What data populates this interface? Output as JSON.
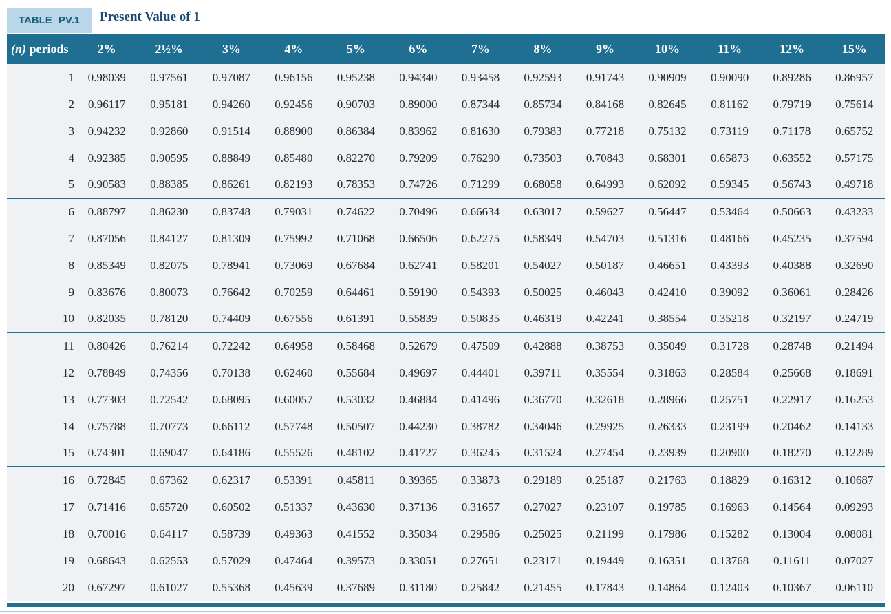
{
  "header": {
    "tag": "TABLE PV.1",
    "title": "Present Value of 1"
  },
  "colors": {
    "band": "#1F6F92",
    "tag_bg": "#B9D7E8",
    "tag_text": "#1A5E80",
    "title_text": "#1B4A73",
    "body_bg": "#EFF1F3",
    "cell_text": "#222733",
    "rule_light": "#A8CCDF",
    "rule_gray": "#CBD0D4"
  },
  "table": {
    "n_header_symbol": "(n)",
    "n_header_rest": " periods",
    "group_size": 5,
    "columns": [
      "2%",
      "2½%",
      "3%",
      "4%",
      "5%",
      "6%",
      "7%",
      "8%",
      "9%",
      "10%",
      "11%",
      "12%",
      "15%"
    ],
    "rows": [
      {
        "n": "1",
        "values": [
          "0.98039",
          "0.97561",
          "0.97087",
          "0.96156",
          "0.95238",
          "0.94340",
          "0.93458",
          "0.92593",
          "0.91743",
          "0.90909",
          "0.90090",
          "0.89286",
          "0.86957"
        ]
      },
      {
        "n": "2",
        "values": [
          "0.96117",
          "0.95181",
          "0.94260",
          "0.92456",
          "0.90703",
          "0.89000",
          "0.87344",
          "0.85734",
          "0.84168",
          "0.82645",
          "0.81162",
          "0.79719",
          "0.75614"
        ]
      },
      {
        "n": "3",
        "values": [
          "0.94232",
          "0.92860",
          "0.91514",
          "0.88900",
          "0.86384",
          "0.83962",
          "0.81630",
          "0.79383",
          "0.77218",
          "0.75132",
          "0.73119",
          "0.71178",
          "0.65752"
        ]
      },
      {
        "n": "4",
        "values": [
          "0.92385",
          "0.90595",
          "0.88849",
          "0.85480",
          "0.82270",
          "0.79209",
          "0.76290",
          "0.73503",
          "0.70843",
          "0.68301",
          "0.65873",
          "0.63552",
          "0.57175"
        ]
      },
      {
        "n": "5",
        "values": [
          "0.90583",
          "0.88385",
          "0.86261",
          "0.82193",
          "0.78353",
          "0.74726",
          "0.71299",
          "0.68058",
          "0.64993",
          "0.62092",
          "0.59345",
          "0.56743",
          "0.49718"
        ]
      },
      {
        "n": "6",
        "values": [
          "0.88797",
          "0.86230",
          "0.83748",
          "0.79031",
          "0.74622",
          "0.70496",
          "0.66634",
          "0.63017",
          "0.59627",
          "0.56447",
          "0.53464",
          "0.50663",
          "0.43233"
        ]
      },
      {
        "n": "7",
        "values": [
          "0.87056",
          "0.84127",
          "0.81309",
          "0.75992",
          "0.71068",
          "0.66506",
          "0.62275",
          "0.58349",
          "0.54703",
          "0.51316",
          "0.48166",
          "0.45235",
          "0.37594"
        ]
      },
      {
        "n": "8",
        "values": [
          "0.85349",
          "0.82075",
          "0.78941",
          "0.73069",
          "0.67684",
          "0.62741",
          "0.58201",
          "0.54027",
          "0.50187",
          "0.46651",
          "0.43393",
          "0.40388",
          "0.32690"
        ]
      },
      {
        "n": "9",
        "values": [
          "0.83676",
          "0.80073",
          "0.76642",
          "0.70259",
          "0.64461",
          "0.59190",
          "0.54393",
          "0.50025",
          "0.46043",
          "0.42410",
          "0.39092",
          "0.36061",
          "0.28426"
        ]
      },
      {
        "n": "10",
        "values": [
          "0.82035",
          "0.78120",
          "0.74409",
          "0.67556",
          "0.61391",
          "0.55839",
          "0.50835",
          "0.46319",
          "0.42241",
          "0.38554",
          "0.35218",
          "0.32197",
          "0.24719"
        ]
      },
      {
        "n": "11",
        "values": [
          "0.80426",
          "0.76214",
          "0.72242",
          "0.64958",
          "0.58468",
          "0.52679",
          "0.47509",
          "0.42888",
          "0.38753",
          "0.35049",
          "0.31728",
          "0.28748",
          "0.21494"
        ]
      },
      {
        "n": "12",
        "values": [
          "0.78849",
          "0.74356",
          "0.70138",
          "0.62460",
          "0.55684",
          "0.49697",
          "0.44401",
          "0.39711",
          "0.35554",
          "0.31863",
          "0.28584",
          "0.25668",
          "0.18691"
        ]
      },
      {
        "n": "13",
        "values": [
          "0.77303",
          "0.72542",
          "0.68095",
          "0.60057",
          "0.53032",
          "0.46884",
          "0.41496",
          "0.36770",
          "0.32618",
          "0.28966",
          "0.25751",
          "0.22917",
          "0.16253"
        ]
      },
      {
        "n": "14",
        "values": [
          "0.75788",
          "0.70773",
          "0.66112",
          "0.57748",
          "0.50507",
          "0.44230",
          "0.38782",
          "0.34046",
          "0.29925",
          "0.26333",
          "0.23199",
          "0.20462",
          "0.14133"
        ]
      },
      {
        "n": "15",
        "values": [
          "0.74301",
          "0.69047",
          "0.64186",
          "0.55526",
          "0.48102",
          "0.41727",
          "0.36245",
          "0.31524",
          "0.27454",
          "0.23939",
          "0.20900",
          "0.18270",
          "0.12289"
        ]
      },
      {
        "n": "16",
        "values": [
          "0.72845",
          "0.67362",
          "0.62317",
          "0.53391",
          "0.45811",
          "0.39365",
          "0.33873",
          "0.29189",
          "0.25187",
          "0.21763",
          "0.18829",
          "0.16312",
          "0.10687"
        ]
      },
      {
        "n": "17",
        "values": [
          "0.71416",
          "0.65720",
          "0.60502",
          "0.51337",
          "0.43630",
          "0.37136",
          "0.31657",
          "0.27027",
          "0.23107",
          "0.19785",
          "0.16963",
          "0.14564",
          "0.09293"
        ]
      },
      {
        "n": "18",
        "values": [
          "0.70016",
          "0.64117",
          "0.58739",
          "0.49363",
          "0.41552",
          "0.35034",
          "0.29586",
          "0.25025",
          "0.21199",
          "0.17986",
          "0.15282",
          "0.13004",
          "0.08081"
        ]
      },
      {
        "n": "19",
        "values": [
          "0.68643",
          "0.62553",
          "0.57029",
          "0.47464",
          "0.39573",
          "0.33051",
          "0.27651",
          "0.23171",
          "0.19449",
          "0.16351",
          "0.13768",
          "0.11611",
          "0.07027"
        ]
      },
      {
        "n": "20",
        "values": [
          "0.67297",
          "0.61027",
          "0.55368",
          "0.45639",
          "0.37689",
          "0.31180",
          "0.25842",
          "0.21455",
          "0.17843",
          "0.14864",
          "0.12403",
          "0.10367",
          "0.06110"
        ]
      }
    ]
  }
}
